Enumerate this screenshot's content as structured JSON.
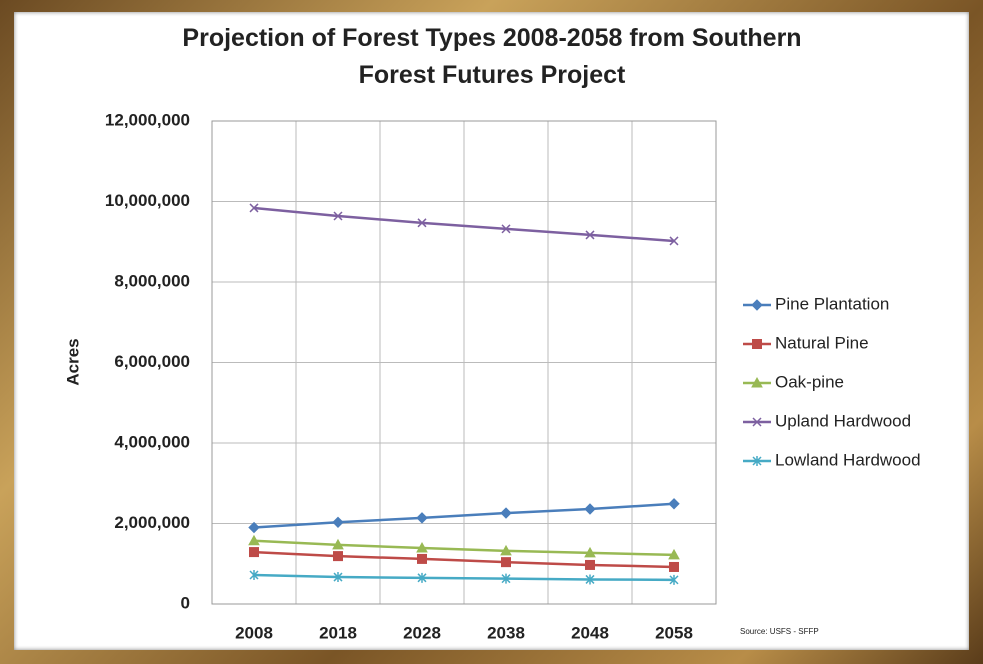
{
  "chart_data": {
    "type": "line",
    "title": "Projection of Forest Types 2008-2058 from Southern Forest Futures Project",
    "y_label": "Acres",
    "source": "Source: USFS - SFFP",
    "categories": [
      "2008",
      "2018",
      "2028",
      "2038",
      "2048",
      "2058"
    ],
    "series": [
      {
        "name": "Pine Plantation",
        "color": "#4a7ebb",
        "marker": "diamond",
        "values": [
          1900000,
          2030000,
          2140000,
          2260000,
          2360000,
          2490000
        ]
      },
      {
        "name": "Natural Pine",
        "color": "#be4b48",
        "marker": "square",
        "values": [
          1290000,
          1190000,
          1120000,
          1040000,
          970000,
          920000
        ]
      },
      {
        "name": "Oak-pine",
        "color": "#98b954",
        "marker": "triangle",
        "values": [
          1570000,
          1470000,
          1390000,
          1320000,
          1270000,
          1220000
        ]
      },
      {
        "name": "Upland Hardwood",
        "color": "#7d60a0",
        "marker": "x",
        "values": [
          9840000,
          9640000,
          9470000,
          9320000,
          9170000,
          9020000
        ]
      },
      {
        "name": "Lowland Hardwood",
        "color": "#46aac5",
        "marker": "star",
        "values": [
          720000,
          670000,
          650000,
          630000,
          610000,
          600000
        ]
      }
    ],
    "ylim": [
      0,
      12000000
    ],
    "yticks": [
      0,
      {
        "value": 2000000,
        "label": "2,000,000"
      },
      {
        "value": 4000000,
        "label": "4,000,000"
      },
      {
        "value": 6000000,
        "label": "6,000,000"
      },
      {
        "value": 8000000,
        "label": "8,000,000"
      },
      {
        "value": 10000000,
        "label": "10,000,000"
      },
      {
        "value": 12000000,
        "label": "12,000,000"
      }
    ],
    "grid": true,
    "legend": "right"
  }
}
